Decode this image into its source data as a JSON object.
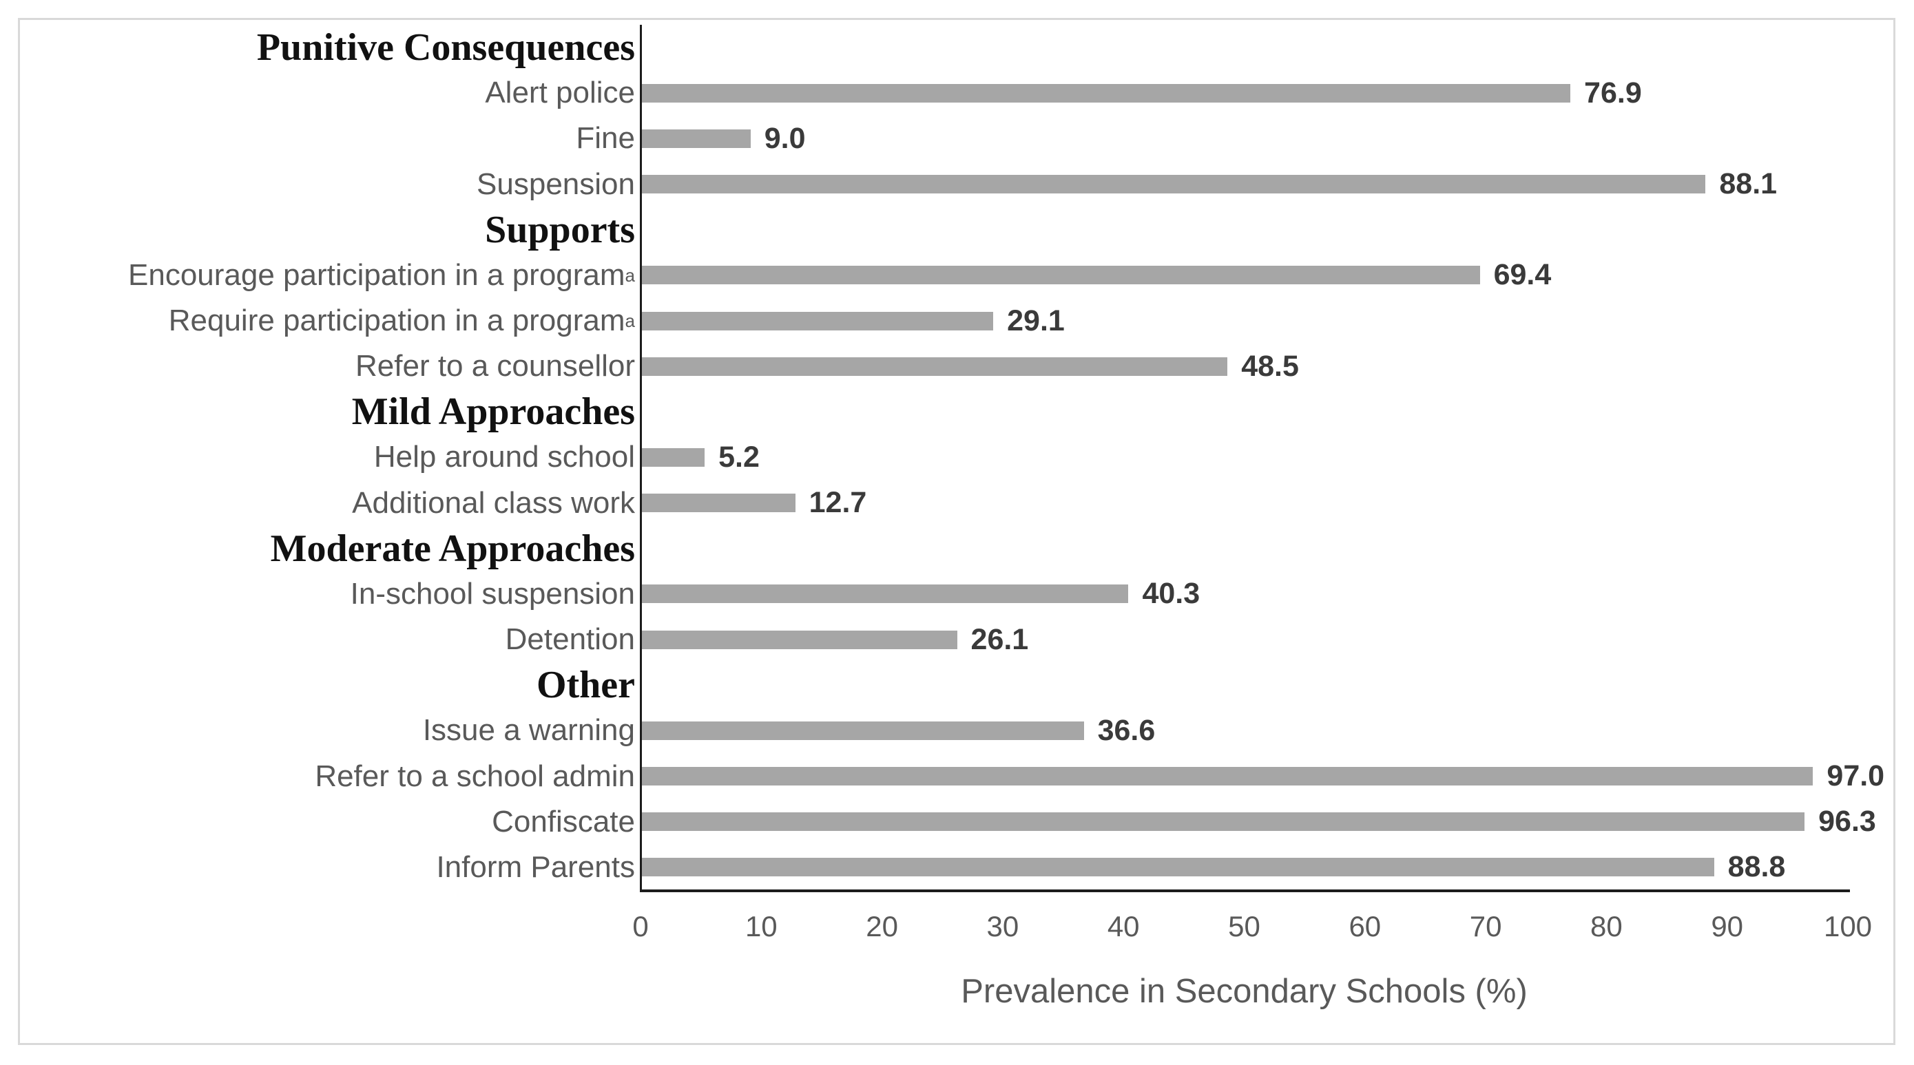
{
  "chart_data": {
    "type": "bar",
    "orientation": "horizontal",
    "title": "",
    "xlabel": "Prevalence in Secondary Schools (%)",
    "ylabel": "",
    "xlim": [
      0,
      100
    ],
    "x_ticks": [
      0,
      10,
      20,
      30,
      40,
      50,
      60,
      70,
      80,
      90,
      100
    ],
    "grid": false,
    "legend": false,
    "rows": [
      {
        "kind": "group",
        "label": "Punitive Consequences"
      },
      {
        "kind": "bar",
        "label": "Alert police",
        "value": 76.9,
        "value_label": "76.9"
      },
      {
        "kind": "bar",
        "label": "Fine",
        "value": 9.0,
        "value_label": "9.0"
      },
      {
        "kind": "bar",
        "label": "Suspension",
        "value": 88.1,
        "value_label": "88.1"
      },
      {
        "kind": "group",
        "label": "Supports"
      },
      {
        "kind": "bar",
        "label": "Encourage participation in a program",
        "superscript": "a",
        "value": 69.4,
        "value_label": "69.4"
      },
      {
        "kind": "bar",
        "label": "Require participation in a program",
        "superscript": "a",
        "value": 29.1,
        "value_label": "29.1"
      },
      {
        "kind": "bar",
        "label": "Refer to a counsellor",
        "value": 48.5,
        "value_label": "48.5"
      },
      {
        "kind": "group",
        "label": "Mild Approaches"
      },
      {
        "kind": "bar",
        "label": "Help around school",
        "value": 5.2,
        "value_label": "5.2"
      },
      {
        "kind": "bar",
        "label": "Additional class work",
        "value": 12.7,
        "value_label": "12.7"
      },
      {
        "kind": "group",
        "label": "Moderate Approaches"
      },
      {
        "kind": "bar",
        "label": "In-school suspension",
        "value": 40.3,
        "value_label": "40.3"
      },
      {
        "kind": "bar",
        "label": "Detention",
        "value": 26.1,
        "value_label": "26.1"
      },
      {
        "kind": "group",
        "label": "Other"
      },
      {
        "kind": "bar",
        "label": "Issue a warning",
        "value": 36.6,
        "value_label": "36.6"
      },
      {
        "kind": "bar",
        "label": "Refer to a school admin",
        "value": 97.0,
        "value_label": "97.0"
      },
      {
        "kind": "bar",
        "label": "Confiscate",
        "value": 96.3,
        "value_label": "96.3"
      },
      {
        "kind": "bar",
        "label": "Inform Parents",
        "value": 88.8,
        "value_label": "88.8"
      }
    ]
  },
  "colors": {
    "bar_fill": "#a6a6a6",
    "axis_line": "#1c1c1c",
    "category_text": "#595959",
    "group_header_text": "#111111",
    "value_text": "#3a3a3a",
    "tick_text": "#595959",
    "figure_border": "#d9d9d9",
    "background": "#ffffff"
  }
}
